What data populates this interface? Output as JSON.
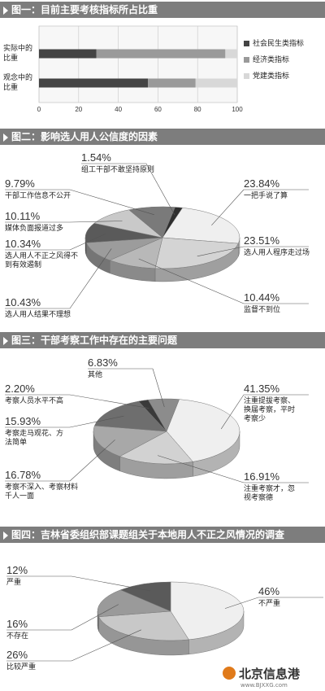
{
  "headers": [
    "图一：目前主要考核指标所占比重",
    "图二：影响选人用人公信度的因素",
    "图三：干部考察工作中存在的主要问题",
    "图四：吉林省委组织部课题组关于本地用人不正之风情况的调查"
  ],
  "watermark": {
    "brand": "北京信息港",
    "url": "www.BJXXG.com"
  },
  "colors": {
    "header_bg": "#7d7d7d",
    "dark": "#444444",
    "mid": "#9a9a9a",
    "light": "#d8d8d8"
  },
  "chart_data": [
    {
      "type": "bar",
      "stacked": true,
      "orientation": "horizontal",
      "title": "图一：目前主要考核指标所占比重",
      "categories": [
        "实际中的比重",
        "观念中的比重"
      ],
      "xlim": [
        0,
        100
      ],
      "xticks": [
        "0",
        "20",
        "40",
        "60",
        "80",
        "100"
      ],
      "legend_position": "right",
      "series": [
        {
          "name": "社会民生类指标",
          "values": [
            29,
            55
          ],
          "color": "#444444"
        },
        {
          "name": "经济类指标",
          "values": [
            65,
            24
          ],
          "color": "#9a9a9a"
        },
        {
          "name": "党建类指标",
          "values": [
            6,
            21
          ],
          "color": "#d8d8d8"
        }
      ]
    },
    {
      "type": "pie",
      "title": "图二：影响选人用人公信度的因素",
      "slices": [
        {
          "value": 23.84,
          "pct": "23.84%",
          "label": "一把手说了算",
          "color": "#efefef"
        },
        {
          "value": 23.51,
          "pct": "23.51%",
          "label": "选人用人程序走过场",
          "color": "#d4d4d4"
        },
        {
          "value": 10.44,
          "pct": "10.44%",
          "label": "监督不到位",
          "color": "#b8b8b8"
        },
        {
          "value": 10.43,
          "pct": "10.43%",
          "label": "选人用人结果不理想",
          "color": "#9c9c9c"
        },
        {
          "value": 10.34,
          "pct": "10.34%",
          "label": "选人用人不正之风得不到有效遏制",
          "color": "#5a5a5a"
        },
        {
          "value": 10.11,
          "pct": "10.11%",
          "label": "媒体负面报道过多",
          "color": "#c9c9c9"
        },
        {
          "value": 9.79,
          "pct": "9.79%",
          "label": "干部工作信息不公开",
          "color": "#7a7a7a"
        },
        {
          "value": 1.54,
          "pct": "1.54%",
          "label": "组工干部不敢坚持原则",
          "color": "#2e2e2e"
        }
      ]
    },
    {
      "type": "pie",
      "title": "图三：干部考察工作中存在的主要问题",
      "slices": [
        {
          "value": 41.35,
          "pct": "41.35%",
          "label": "注重提拔考察、换届考察，平时考察少",
          "color": "#efefef"
        },
        {
          "value": 16.91,
          "pct": "16.91%",
          "label": "注重考察才，忽视考察德",
          "color": "#d2d2d2"
        },
        {
          "value": 16.78,
          "pct": "16.78%",
          "label": "考察不深入、考察材料千人一面",
          "color": "#a8a8a8"
        },
        {
          "value": 15.93,
          "pct": "15.93%",
          "label": "考察走马观花、方法简单",
          "color": "#6e6e6e"
        },
        {
          "value": 2.2,
          "pct": "2.20%",
          "label": "考察人员水平不高",
          "color": "#3a3a3a"
        },
        {
          "value": 6.83,
          "pct": "6.83%",
          "label": "其他",
          "color": "#8c8c8c"
        }
      ]
    },
    {
      "type": "pie",
      "title": "图四：吉林省委组织部课题组关于本地用人不正之风情况的调查",
      "slices": [
        {
          "value": 46,
          "pct": "46%",
          "label": "不严重",
          "color": "#efefef"
        },
        {
          "value": 26,
          "pct": "26%",
          "label": "比较严重",
          "color": "#c8c8c8"
        },
        {
          "value": 16,
          "pct": "16%",
          "label": "不存在",
          "color": "#9a9a9a"
        },
        {
          "value": 12,
          "pct": "12%",
          "label": "严重",
          "color": "#5a5a5a"
        }
      ]
    }
  ]
}
